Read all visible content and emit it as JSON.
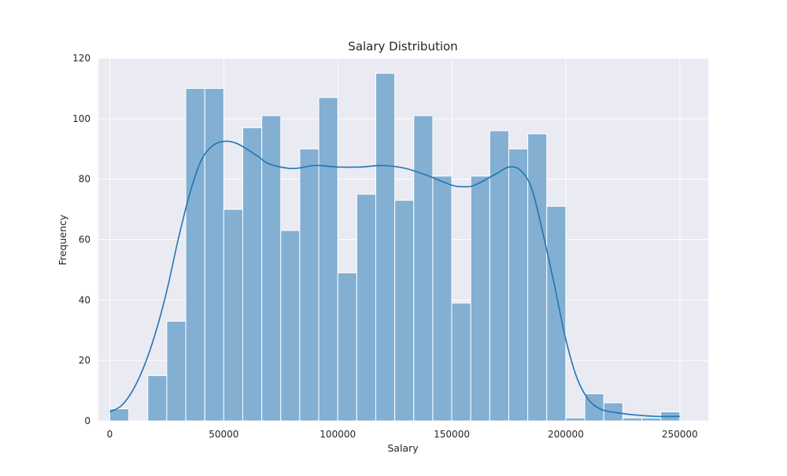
{
  "chart_data": {
    "type": "bar",
    "title": "Salary Distribution",
    "xlabel": "Salary",
    "ylabel": "Frequency",
    "xlim": [
      -5000,
      262500
    ],
    "ylim": [
      0,
      120
    ],
    "x_ticks": [
      0,
      50000,
      100000,
      150000,
      200000,
      250000
    ],
    "x_tick_labels": [
      "0",
      "50000",
      "100000",
      "150000",
      "200000",
      "250000"
    ],
    "y_ticks": [
      0,
      20,
      40,
      60,
      80,
      100,
      120
    ],
    "y_tick_labels": [
      "0",
      "20",
      "40",
      "60",
      "80",
      "100",
      "120"
    ],
    "grid": true,
    "bin_start": 0,
    "bin_width": 8333,
    "values": [
      4,
      0,
      15,
      33,
      110,
      110,
      70,
      97,
      101,
      63,
      90,
      107,
      49,
      75,
      115,
      73,
      101,
      81,
      39,
      81,
      96,
      90,
      95,
      71,
      1,
      9,
      6,
      1,
      1,
      3
    ],
    "kde": {
      "x": [
        0,
        5000,
        10000,
        15000,
        20000,
        25000,
        30000,
        35000,
        40000,
        45000,
        50000,
        55000,
        60000,
        65000,
        70000,
        80000,
        90000,
        100000,
        110000,
        120000,
        130000,
        140000,
        150000,
        155000,
        160000,
        170000,
        175000,
        180000,
        185000,
        190000,
        195000,
        200000,
        205000,
        210000,
        215000,
        220000,
        230000,
        240000,
        250000
      ],
      "y": [
        3,
        5,
        10,
        18,
        29,
        43,
        60,
        75,
        86,
        91,
        92.5,
        92,
        90,
        87.5,
        85,
        83.5,
        84.5,
        84,
        84,
        84.5,
        83.5,
        81,
        78,
        77.5,
        78,
        82,
        84,
        83,
        77,
        62,
        45,
        27,
        14,
        7,
        4,
        3,
        2,
        1.5,
        1.5
      ]
    },
    "colors": {
      "bar_fill": "#82afd2",
      "bar_edge": "#ffffff",
      "kde_line": "#1f77b4",
      "plot_bg": "#eaeaf2",
      "grid": "#ffffff"
    }
  }
}
